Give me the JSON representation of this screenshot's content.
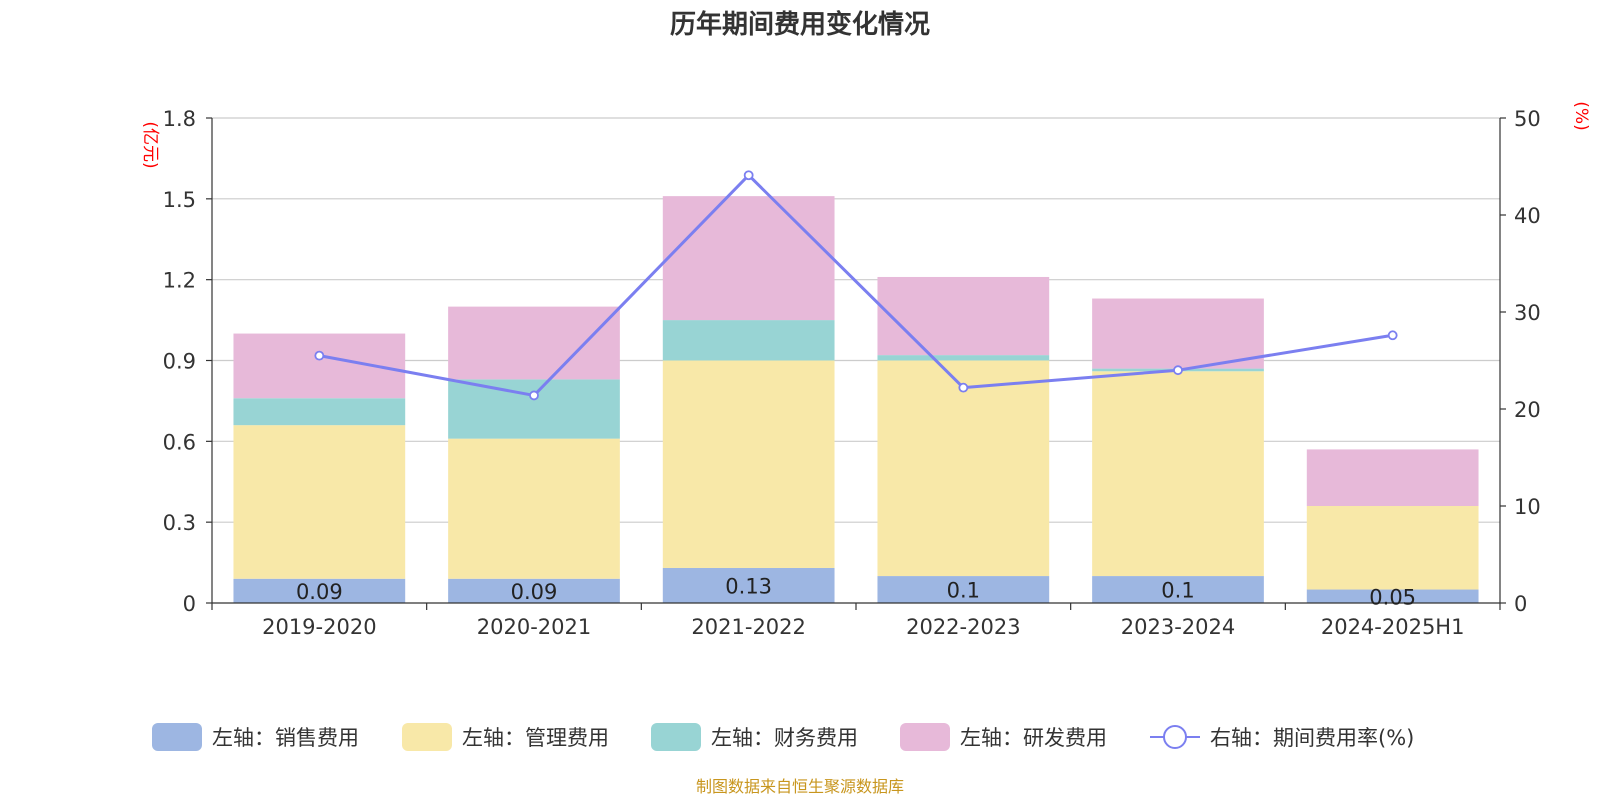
{
  "chart_data": {
    "type": "bar",
    "title": "历年期间费用变化情况",
    "left_unit": "(亿元)",
    "right_unit": "(%)",
    "categories": [
      "2019-2020",
      "2020-2021",
      "2021-2022",
      "2022-2023",
      "2023-2024",
      "2024-2025H1"
    ],
    "stacked": true,
    "series": [
      {
        "name": "左轴：销售费用",
        "axis": "left",
        "color": "#9db6e2",
        "values": [
          0.09,
          0.09,
          0.13,
          0.1,
          0.1,
          0.05
        ],
        "labels": [
          "0.09",
          "0.09",
          "0.13",
          "0.1",
          "0.1",
          "0.05"
        ]
      },
      {
        "name": "左轴：管理费用",
        "axis": "left",
        "color": "#f8e8a8",
        "values": [
          0.57,
          0.52,
          0.77,
          0.8,
          0.76,
          0.31
        ]
      },
      {
        "name": "左轴：财务费用",
        "axis": "left",
        "color": "#98d4d4",
        "values": [
          0.1,
          0.22,
          0.15,
          0.02,
          0.01,
          0.0
        ]
      },
      {
        "name": "左轴：研发费用",
        "axis": "left",
        "color": "#e7b9d9",
        "values": [
          0.24,
          0.27,
          0.46,
          0.29,
          0.26,
          0.21
        ]
      }
    ],
    "line_series": {
      "name": "右轴：期间费用率(%)",
      "axis": "right",
      "type": "line",
      "color": "#7b7ff0",
      "values": [
        25.5,
        21.4,
        44.1,
        22.2,
        24.0,
        27.6
      ]
    },
    "y_left": {
      "min": 0,
      "max": 1.8,
      "ticks": [
        "0",
        "0.3",
        "0.6",
        "0.9",
        "1.2",
        "1.5",
        "1.8"
      ]
    },
    "y_right": {
      "min": 0,
      "max": 50,
      "ticks": [
        "0",
        "10",
        "20",
        "30",
        "40",
        "50"
      ]
    },
    "grid": true,
    "legend_position": "bottom"
  },
  "source": "制图数据来自恒生聚源数据库"
}
